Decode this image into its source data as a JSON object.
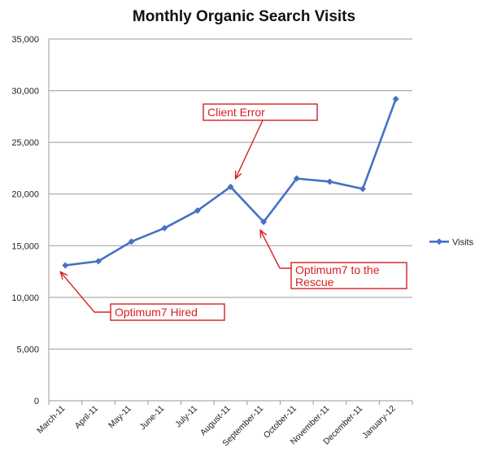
{
  "chart_data": {
    "type": "line",
    "title": "Monthly Organic Search Visits",
    "xlabel": "",
    "ylabel": "",
    "categories": [
      "March-11",
      "April-11",
      "May-11",
      "June-11",
      "July-11",
      "August-11",
      "September-11",
      "October-11",
      "November-11",
      "December-11",
      "January-12"
    ],
    "series": [
      {
        "name": "Visits",
        "values": [
          13100,
          13500,
          15400,
          16700,
          18400,
          20700,
          17300,
          21500,
          21200,
          20500,
          29200
        ]
      }
    ],
    "ylim": [
      0,
      35000
    ],
    "yticks": [
      0,
      5000,
      10000,
      15000,
      20000,
      25000,
      30000,
      35000
    ],
    "ytick_labels": [
      "0",
      "5,000",
      "10,000",
      "15,000",
      "20,000",
      "25,000",
      "30,000",
      "35,000"
    ],
    "grid": "horizontal",
    "legend_position": "right",
    "series_color": "#4472c4",
    "annotations": [
      {
        "text": "Client Error",
        "target_index": 5
      },
      {
        "text": "Optimum7 Hired",
        "target_index": 0
      },
      {
        "text_lines": [
          "Optimum7 to the",
          "Rescue"
        ],
        "target_index": 6
      }
    ],
    "annotation_color": "#d62020"
  }
}
